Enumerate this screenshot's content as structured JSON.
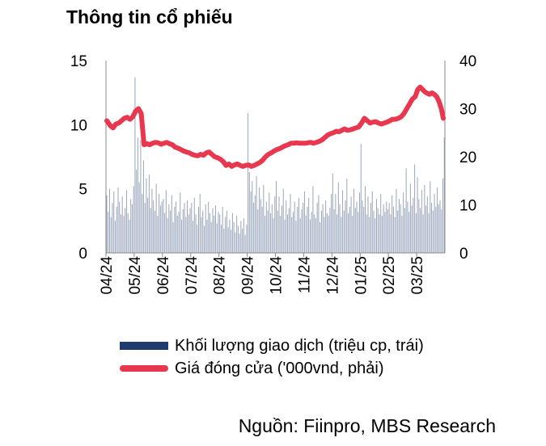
{
  "title": "Thông tin cổ phiếu",
  "source": "Nguồn: Fiinpro, MBS Research",
  "colors": {
    "volume": "#9aa6bb",
    "volume_legend": "#1f3a6e",
    "price": "#e8384f"
  },
  "chart_data": {
    "type": "bar+line",
    "x_tick_labels": [
      "04/24",
      "05/24",
      "06/24",
      "07/24",
      "08/24",
      "09/24",
      "10/24",
      "11/24",
      "12/24",
      "01/25",
      "02/25",
      "03/25"
    ],
    "y_left": {
      "ticks": [
        "0",
        "5",
        "10",
        "15"
      ],
      "range": [
        0,
        15
      ]
    },
    "y_right": {
      "ticks": [
        "0",
        "10",
        "20",
        "30",
        "40"
      ],
      "range": [
        0,
        40
      ]
    },
    "series": [
      {
        "name": "Khối lượng giao dịch (triệu cp, trái)",
        "type": "bar",
        "axis": "left",
        "monthly_values": [
          [
            4.5,
            3.2,
            5.0,
            2.8,
            3.9,
            4.8,
            2.5,
            3.6,
            5.1,
            4.0,
            3.0,
            4.4,
            2.9,
            3.5,
            4.9,
            3.1,
            2.6,
            4.2,
            3.8,
            5.2
          ],
          [
            13.7,
            6.5,
            9.0,
            5.5,
            8.8,
            4.6,
            7.2,
            3.9,
            5.8,
            4.3,
            6.1,
            3.5,
            5.0,
            4.1,
            3.3,
            5.4,
            2.9,
            4.6,
            3.7,
            4.0
          ],
          [
            4.2,
            3.1,
            4.9,
            2.7,
            3.8,
            3.3,
            4.5,
            2.4,
            3.6,
            4.0,
            2.9,
            3.2,
            4.7,
            2.6,
            3.4,
            3.9,
            2.8,
            4.1,
            3.0,
            3.5
          ],
          [
            3.9,
            2.5,
            4.3,
            3.0,
            2.2,
            3.6,
            4.6,
            2.8,
            3.3,
            2.1,
            3.8,
            2.6,
            4.0,
            3.1,
            2.4,
            3.5,
            2.9,
            3.7,
            2.3,
            3.2
          ],
          [
            3.0,
            2.2,
            3.6,
            1.9,
            2.8,
            3.3,
            2.0,
            2.6,
            1.8,
            3.1,
            2.4,
            1.6,
            2.9,
            2.1,
            1.5,
            2.5,
            1.9,
            2.7,
            1.4,
            2.2
          ],
          [
            10.9,
            6.3,
            4.8,
            5.6,
            3.9,
            4.5,
            6.0,
            3.4,
            5.1,
            4.2,
            3.6,
            5.3,
            2.9,
            4.0,
            3.3,
            4.7,
            3.1,
            3.8,
            2.7,
            4.4
          ],
          [
            5.6,
            3.3,
            4.4,
            2.9,
            3.7,
            5.0,
            2.6,
            4.1,
            3.0,
            3.5,
            4.6,
            2.8,
            3.2,
            4.0,
            2.5,
            3.6,
            4.3,
            2.7,
            3.4,
            3.9
          ],
          [
            4.8,
            2.9,
            3.6,
            4.3,
            2.6,
            3.2,
            5.2,
            3.0,
            2.7,
            3.9,
            4.5,
            2.4,
            3.3,
            3.8,
            2.8,
            4.1,
            3.1,
            2.9,
            3.5,
            4.6
          ],
          [
            6.2,
            3.4,
            4.6,
            3.0,
            5.5,
            3.8,
            2.8,
            4.9,
            3.3,
            4.1,
            5.8,
            3.1,
            3.6,
            4.4,
            2.9,
            5.0,
            3.5,
            4.0,
            3.2,
            4.7
          ],
          [
            8.5,
            4.1,
            3.6,
            5.2,
            3.0,
            4.4,
            2.8,
            3.9,
            4.8,
            3.3,
            2.7,
            4.2,
            3.5,
            3.0,
            4.6,
            2.9,
            3.8,
            3.2,
            4.0,
            3.4
          ],
          [
            3.9,
            3.0,
            4.5,
            3.6,
            2.8,
            5.0,
            3.3,
            4.2,
            3.8,
            2.9,
            4.7,
            3.5,
            6.6,
            4.0,
            3.2,
            5.4,
            3.7,
            4.3,
            6.9,
            3.1
          ],
          [
            5.9,
            4.2,
            3.5,
            4.9,
            3.0,
            5.3,
            3.7,
            4.4,
            3.1,
            5.6,
            3.9,
            3.3,
            4.6,
            3.6,
            5.1,
            3.8,
            4.1,
            3.4,
            5.8,
            9.0
          ]
        ]
      },
      {
        "name": "Giá đóng cửa ('000vnd, phải)",
        "type": "line",
        "axis": "right",
        "monthly_values": [
          [
            27.5,
            26.5,
            26.0,
            26.8,
            27.0,
            27.5,
            28.0,
            28.2,
            27.8,
            28.3
          ],
          [
            29.5,
            30.0,
            29.0,
            22.5,
            22.7,
            22.5,
            22.8,
            23.0,
            22.9,
            22.6
          ],
          [
            22.8,
            23.0,
            22.7,
            22.5,
            22.0,
            21.8,
            21.5,
            21.2,
            21.0,
            20.8
          ],
          [
            20.5,
            20.3,
            20.2,
            20.5,
            20.3,
            20.8,
            21.0,
            20.5,
            20.0,
            19.8
          ],
          [
            19.5,
            19.0,
            18.2,
            18.5,
            18.0,
            18.3,
            18.5,
            18.2,
            18.0,
            18.2
          ],
          [
            18.3,
            18.0,
            18.2,
            18.5,
            18.8,
            19.3,
            20.0,
            20.5,
            20.8,
            21.2
          ],
          [
            21.5,
            21.7,
            22.0,
            22.3,
            22.5,
            22.8,
            22.8,
            22.9,
            22.8,
            22.8
          ],
          [
            22.8,
            22.9,
            23.0,
            22.8,
            23.0,
            23.2,
            23.5,
            24.0,
            24.5,
            24.8
          ],
          [
            25.0,
            25.3,
            25.2,
            25.5,
            25.8,
            25.5,
            25.6,
            25.8,
            26.0,
            26.2
          ],
          [
            27.0,
            28.0,
            27.5,
            27.0,
            27.2,
            27.3,
            27.0,
            26.8,
            27.0,
            27.2
          ],
          [
            27.5,
            27.8,
            27.8,
            28.0,
            28.3,
            29.0,
            30.0,
            31.0,
            32.0,
            32.5
          ],
          [
            34.0,
            34.5,
            34.0,
            33.5,
            33.2,
            33.0,
            33.3,
            33.0,
            32.5,
            31.5,
            30.0,
            28.0
          ]
        ]
      }
    ],
    "legend": "bottom"
  }
}
